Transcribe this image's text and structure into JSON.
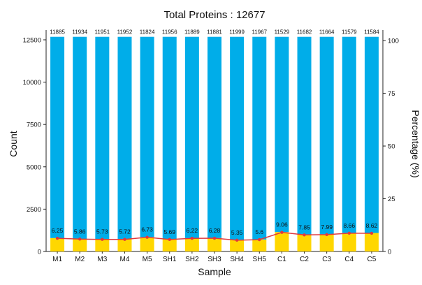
{
  "chart_data": {
    "type": "bar",
    "title": "Total  Proteins : 12677",
    "total": 12677,
    "xlabel": "Sample",
    "ylabel": "Count",
    "ylabel_right": "Percentage (%)",
    "categories": [
      "M1",
      "M2",
      "M3",
      "M4",
      "M5",
      "SH1",
      "SH2",
      "SH3",
      "SH4",
      "SH5",
      "C1",
      "C2",
      "C3",
      "C4",
      "C5"
    ],
    "identified": [
      11885,
      11934,
      11951,
      11952,
      11824,
      11956,
      11889,
      11881,
      11999,
      11967,
      11529,
      11682,
      11664,
      11579,
      11584
    ],
    "missing_percent": [
      6.25,
      5.86,
      5.73,
      5.72,
      6.73,
      5.69,
      6.22,
      6.28,
      5.35,
      5.6,
      9.06,
      7.85,
      7.99,
      8.66,
      8.62
    ],
    "yticks": [
      0,
      2500,
      5000,
      7500,
      10000,
      12500
    ],
    "yticks_right": [
      0,
      25,
      50,
      75,
      100
    ],
    "ylim": [
      0,
      13077
    ],
    "ylim_right": [
      0,
      105
    ],
    "grid": false,
    "colors": {
      "identified": "#00ADE9",
      "missing": "#FFD700",
      "line": "#E0393E"
    }
  }
}
